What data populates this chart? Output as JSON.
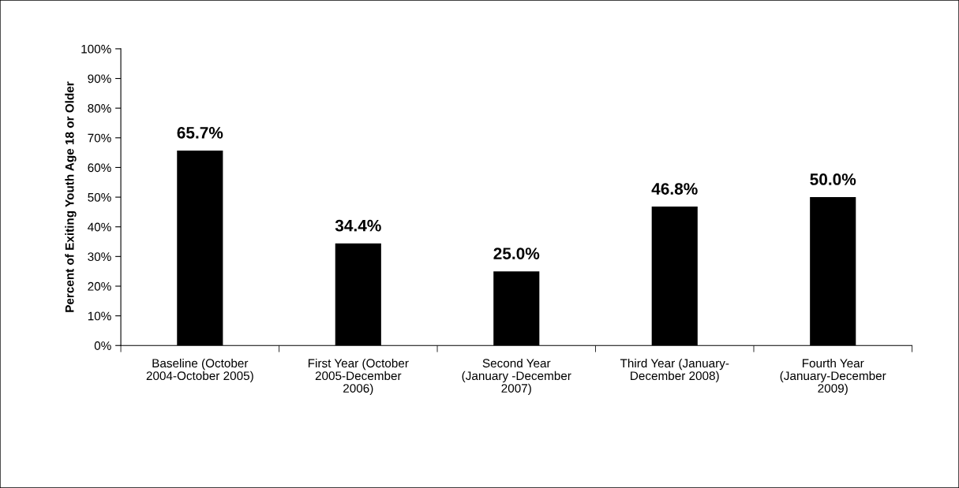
{
  "chart_data": {
    "type": "bar",
    "ylabel": "Percent of Exiting Youth Age 18 or Older",
    "categories": [
      "Baseline (October\n2004-October 2005)",
      "First Year (October\n2005-December\n2006)",
      "Second Year\n(January -December\n2007)",
      "Third Year (January-\nDecember 2008)",
      "Fourth Year\n(January-December\n2009)"
    ],
    "values": [
      65.7,
      34.4,
      25.0,
      46.8,
      50.0
    ],
    "value_labels": [
      "65.7%",
      "34.4%",
      "25.0%",
      "46.8%",
      "50.0%"
    ],
    "color": "#000000",
    "ylim": [
      0,
      100
    ],
    "yticks": [
      {
        "value": 0,
        "label": "0%"
      },
      {
        "value": 10,
        "label": "10%"
      },
      {
        "value": 20,
        "label": "20%"
      },
      {
        "value": 30,
        "label": "30%"
      },
      {
        "value": 40,
        "label": "40%"
      },
      {
        "value": 50,
        "label": "50%"
      },
      {
        "value": 60,
        "label": "60%"
      },
      {
        "value": 70,
        "label": "70%"
      },
      {
        "value": 80,
        "label": "80%"
      },
      {
        "value": 90,
        "label": "90%"
      },
      {
        "value": 100,
        "label": "100%"
      }
    ],
    "grid": false,
    "legend": false
  }
}
